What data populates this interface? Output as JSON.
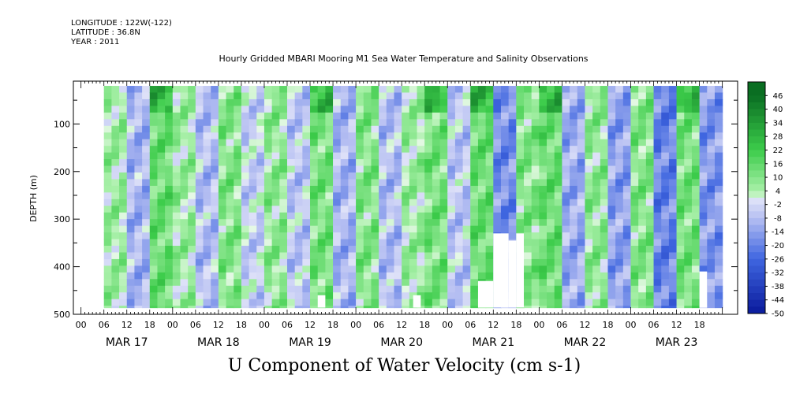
{
  "header": {
    "longitude": "LONGITUDE : 122W(-122)",
    "latitude": "LATITUDE : 36.8N",
    "year": "YEAR : 2011"
  },
  "chart_data": {
    "type": "heatmap",
    "title": "Hourly Gridded MBARI Mooring M1 Sea Water Temperature and Salinity Observations",
    "xlabel": "U Component of Water Velocity (cm s-1)",
    "ylabel": "DEPTH (m)",
    "ylim": [
      500,
      10
    ],
    "yticks": [
      100,
      200,
      300,
      400,
      500
    ],
    "x_hour_ticks": [
      "00",
      "06",
      "12",
      "18",
      "00",
      "06",
      "12",
      "18",
      "00",
      "06",
      "12",
      "18",
      "00",
      "06",
      "12",
      "18",
      "00",
      "06",
      "12",
      "18",
      "00",
      "06",
      "12",
      "18",
      "00",
      "06",
      "12",
      "18"
    ],
    "x_day_labels": [
      "MAR 17",
      "MAR 18",
      "MAR 19",
      "MAR 20",
      "MAR 21",
      "MAR 22",
      "MAR 23"
    ],
    "colorbar_labels": [
      "46",
      "40",
      "34",
      "28",
      "22",
      "16",
      "10",
      "4",
      "-2",
      "-8",
      "-14",
      "-20",
      "-26",
      "-32",
      "-38",
      "-44",
      "-50"
    ],
    "colorbar_range": [
      -50,
      52
    ],
    "colors": {
      "neg_strong": "#0a1a9c",
      "neg_mid": "#3f66e0",
      "neg_light": "#b6bff2",
      "pos_light": "#a8f0a8",
      "pos_mid": "#3ccc4a",
      "pos_strong": "#0a6e22"
    },
    "data_extent": {
      "hours_start": 6,
      "hours_end": 168,
      "depth_top": 20,
      "depth_bottom": 486
    },
    "series_description": "Alternating green (positive) and blue (negative) vertical bands over time and depth",
    "bands": [
      {
        "t_start": 6,
        "t_end": 12,
        "level": 6
      },
      {
        "t_start": 12,
        "t_end": 18,
        "level": -10
      },
      {
        "t_start": 18,
        "t_end": 24,
        "level": 14
      },
      {
        "t_start": 24,
        "t_end": 30,
        "level": 6
      },
      {
        "t_start": 30,
        "t_end": 36,
        "level": -8
      },
      {
        "t_start": 36,
        "t_end": 42,
        "level": 10
      },
      {
        "t_start": 42,
        "t_end": 48,
        "level": -4
      },
      {
        "t_start": 48,
        "t_end": 54,
        "level": 8
      },
      {
        "t_start": 54,
        "t_end": 60,
        "level": -6
      },
      {
        "t_start": 60,
        "t_end": 66,
        "level": 12
      },
      {
        "t_start": 66,
        "t_end": 72,
        "level": -10
      },
      {
        "t_start": 72,
        "t_end": 78,
        "level": 10
      },
      {
        "t_start": 78,
        "t_end": 84,
        "level": -8
      },
      {
        "t_start": 84,
        "t_end": 90,
        "level": 6
      },
      {
        "t_start": 90,
        "t_end": 96,
        "level": 12
      },
      {
        "t_start": 96,
        "t_end": 102,
        "level": -6
      },
      {
        "t_start": 102,
        "t_end": 108,
        "level": 14
      },
      {
        "t_start": 108,
        "t_end": 114,
        "level": -18
      },
      {
        "t_start": 114,
        "t_end": 120,
        "level": 10
      },
      {
        "t_start": 120,
        "t_end": 126,
        "level": 14
      },
      {
        "t_start": 126,
        "t_end": 132,
        "level": -12
      },
      {
        "t_start": 132,
        "t_end": 138,
        "level": 8
      },
      {
        "t_start": 138,
        "t_end": 144,
        "level": -14
      },
      {
        "t_start": 144,
        "t_end": 150,
        "level": 10
      },
      {
        "t_start": 150,
        "t_end": 156,
        "level": -20
      },
      {
        "t_start": 156,
        "t_end": 162,
        "level": 12
      },
      {
        "t_start": 162,
        "t_end": 168,
        "level": -16
      }
    ],
    "gaps": [
      {
        "t_start": 62,
        "t_end": 64,
        "depth_top": 460
      },
      {
        "t_start": 87,
        "t_end": 89,
        "depth_top": 460
      },
      {
        "t_start": 104,
        "t_end": 108,
        "depth_top": 430
      },
      {
        "t_start": 108,
        "t_end": 112,
        "depth_top": 330
      },
      {
        "t_start": 112,
        "t_end": 114,
        "depth_top": 345
      },
      {
        "t_start": 114,
        "t_end": 116,
        "depth_top": 330
      },
      {
        "t_start": 162,
        "t_end": 164,
        "depth_top": 410
      }
    ]
  }
}
